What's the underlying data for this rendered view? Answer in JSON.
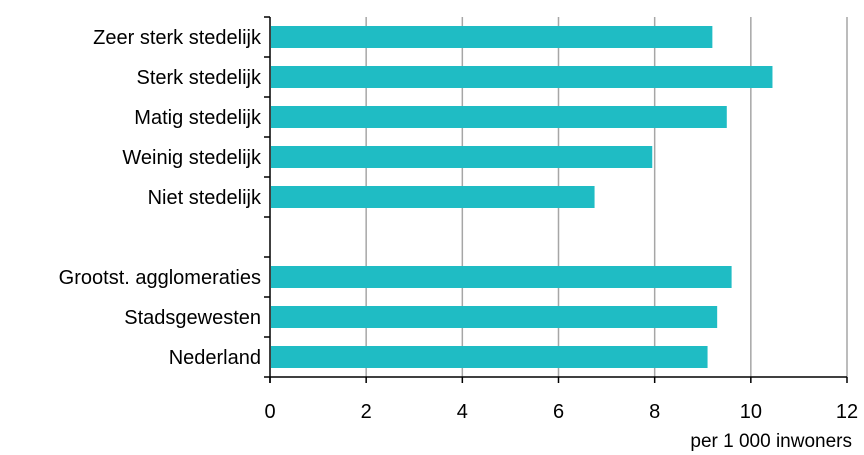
{
  "chart_data": {
    "type": "bar",
    "orientation": "horizontal",
    "categories": [
      "Zeer sterk stedelijk",
      "Sterk stedelijk",
      "Matig stedelijk",
      "Weinig stedelijk",
      "Niet stedelijk",
      "",
      "Grootst. agglomeraties",
      "Stadsgewesten",
      "Nederland"
    ],
    "values": [
      9.2,
      10.45,
      9.5,
      7.95,
      6.75,
      null,
      9.6,
      9.3,
      9.1
    ],
    "xlabel": "per 1 000 inwoners",
    "ylabel": "",
    "xlim": [
      0,
      12
    ],
    "xticks": [
      "0",
      "2",
      "4",
      "6",
      "8",
      "10",
      "12"
    ],
    "grid": "vertical",
    "legend": "none",
    "colors": {
      "bar": "#1fbcc4",
      "grid": "#a6a6a6",
      "axis": "#000000"
    }
  }
}
